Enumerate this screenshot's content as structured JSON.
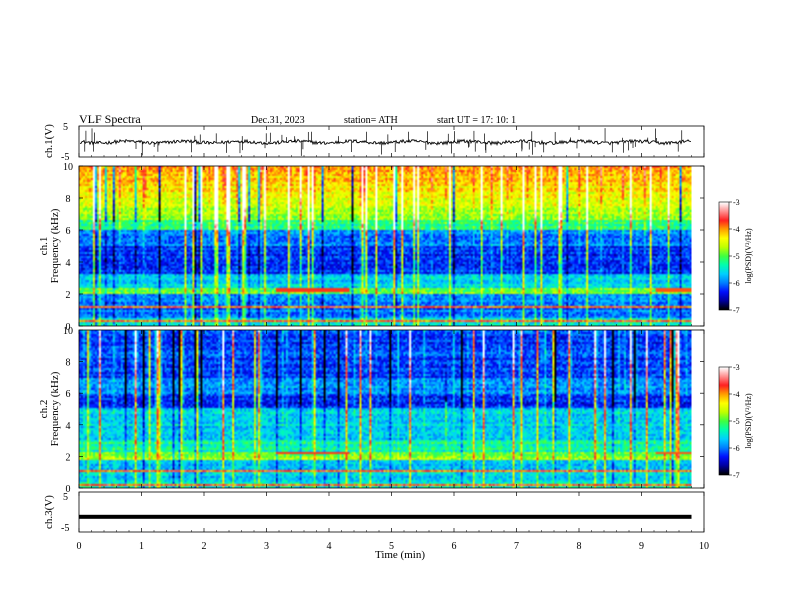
{
  "header": {
    "title": "VLF  Spectra",
    "date": "Dec.31, 2023",
    "station": "station= ATH",
    "start_ut": "start  UT  =    17: 10: 1"
  },
  "chart_data": {
    "type": "heatmap",
    "x_axis": {
      "label": "Time  (min)",
      "range": [
        0,
        10
      ],
      "ticks": [
        "0",
        "1",
        "2",
        "3",
        "4",
        "5",
        "6",
        "7",
        "8",
        "9",
        "10"
      ],
      "data_end": 9.8
    },
    "panels": [
      {
        "id": "ch1-waveform",
        "type": "line",
        "ylabel": "ch.1(V)",
        "ylim": [
          -5,
          5
        ],
        "ticks": [
          "5",
          "-5"
        ],
        "baseline": -0.2
      },
      {
        "id": "ch1-spectrogram",
        "type": "heatmap",
        "ylabel_line1": "ch.1",
        "ylabel_line2": "Frequency  (kHz)",
        "ylim": [
          0,
          10
        ],
        "ticks": [
          "0",
          "2",
          "4",
          "6",
          "8",
          "10"
        ],
        "colorbar": {
          "label": "log(PSD)(V²/Hz)",
          "range": [
            -7,
            -3
          ],
          "ticks": [
            "-3",
            "-4",
            "-5",
            "-6",
            "-7"
          ]
        }
      },
      {
        "id": "ch2-spectrogram",
        "type": "heatmap",
        "ylabel_line1": "ch.2",
        "ylabel_line2": "Frequency  (kHz)",
        "ylim": [
          0,
          10
        ],
        "ticks": [
          "0",
          "2",
          "4",
          "6",
          "8",
          "10"
        ],
        "colorbar": {
          "label": "log(PSD)(V²/Hz)",
          "range": [
            -7,
            -3
          ],
          "ticks": [
            "-3",
            "-4",
            "-5",
            "-6",
            "-7"
          ]
        }
      },
      {
        "id": "ch3-waveform",
        "type": "line",
        "ylabel": "ch.3(V)",
        "ylim": [
          -5,
          5
        ],
        "ticks": [
          "5",
          "-5"
        ],
        "baseline": -1.2
      }
    ],
    "colormap": [
      "#000000",
      "#0000a0",
      "#0010ff",
      "#0080ff",
      "#00d0ff",
      "#00ffb0",
      "#40ff40",
      "#c0ff00",
      "#ffff00",
      "#ffa000",
      "#ff2020",
      "#ff9090",
      "#ffffff"
    ]
  }
}
